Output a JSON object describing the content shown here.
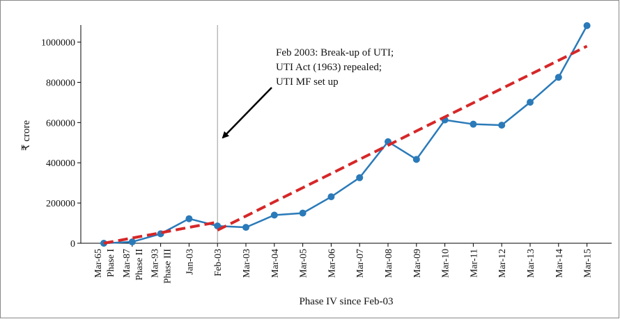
{
  "chart_data": {
    "type": "line",
    "ylabel": "₹ crore",
    "xlabel": "Phase IV since Feb-03",
    "xlabel_color": "#2e7ebc",
    "categories": [
      [
        "Mar-65",
        "Phase I"
      ],
      [
        "Mar-87",
        "Phase II"
      ],
      [
        "Mar-93",
        "Phase III"
      ],
      [
        "Jan-03"
      ],
      [
        "Feb-03"
      ],
      [
        "Mar-03"
      ],
      [
        "Mar-04"
      ],
      [
        "Mar-05"
      ],
      [
        "Mar-06"
      ],
      [
        "Mar-07"
      ],
      [
        "Mar-08"
      ],
      [
        "Mar-09"
      ],
      [
        "Mar-10"
      ],
      [
        "Mar-11"
      ],
      [
        "Mar-12"
      ],
      [
        "Mar-13"
      ],
      [
        "Mar-14"
      ],
      [
        "Mar-15"
      ]
    ],
    "category_label_colors": [
      "#2e7ebc",
      "#2e7ebc",
      "#2e7ebc",
      "#111",
      "#111",
      "#111",
      "#111",
      "#111",
      "#111",
      "#111",
      "#111",
      "#111",
      "#111",
      "#111",
      "#111",
      "#111",
      "#111",
      "#111"
    ],
    "series": [
      {
        "color": "#2a7ab9",
        "style": "solid",
        "markers": true,
        "values": [
          0,
          6700,
          47000,
          122000,
          86000,
          79000,
          140000,
          150000,
          231000,
          326000,
          505000,
          417000,
          613000,
          592000,
          587000,
          701000,
          825000,
          1082000
        ]
      },
      {
        "color": "#d62728",
        "style": "dashed",
        "markers": false,
        "values": [
          0,
          26000,
          52000,
          79000,
          105000,
          null,
          null,
          null,
          null,
          null,
          null,
          null,
          null,
          null,
          null,
          null,
          null,
          null
        ]
      },
      {
        "color": "#d62728",
        "style": "dashed",
        "markers": false,
        "values": [
          null,
          null,
          null,
          null,
          65000,
          135000,
          206000,
          276000,
          346000,
          417000,
          487000,
          558000,
          628000,
          698000,
          769000,
          839000,
          909000,
          980000
        ]
      }
    ],
    "ylim": [
      0,
      1085000
    ],
    "yticks": [
      0,
      200000,
      400000,
      600000,
      800000,
      1000000
    ],
    "vline": "Feb-03",
    "annotation": [
      "Feb 2003: Break-up of UTI;",
      "UTI Act (1963) repealed;",
      "UTI MF set up"
    ]
  }
}
